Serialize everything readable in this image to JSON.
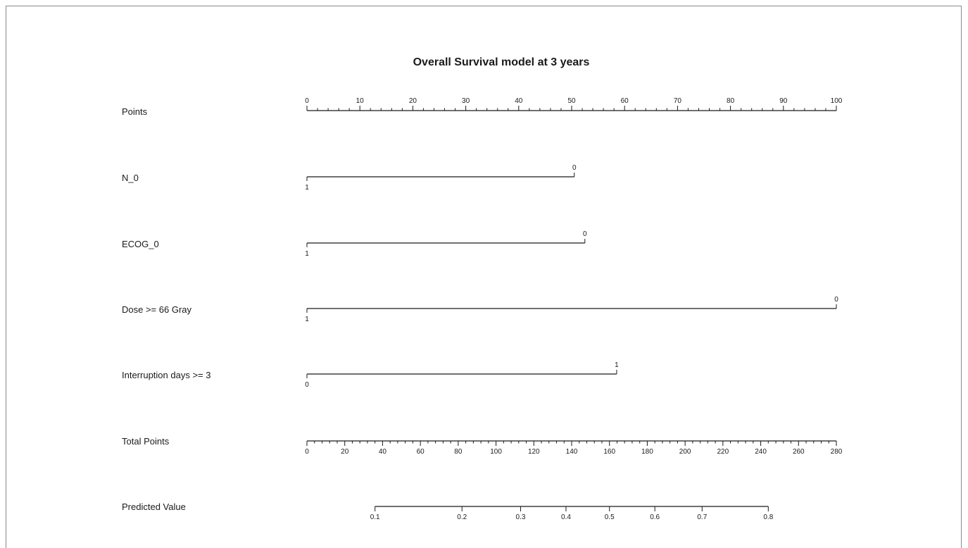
{
  "chart_data": {
    "type": "nomogram",
    "title": "Overall Survival model at 3 years",
    "points_axis": {
      "label": "Points",
      "range": [
        0,
        100
      ],
      "major_ticks": [
        0,
        10,
        20,
        30,
        40,
        50,
        60,
        70,
        80,
        90,
        100
      ],
      "minor_step": 2
    },
    "variables": [
      {
        "name": "N_0",
        "levels": [
          {
            "label": "1",
            "points": 0
          },
          {
            "label": "0",
            "points": 50.5
          }
        ]
      },
      {
        "name": "ECOG_0",
        "levels": [
          {
            "label": "1",
            "points": 0
          },
          {
            "label": "0",
            "points": 52.5
          }
        ]
      },
      {
        "name": "Dose >= 66 Gray",
        "levels": [
          {
            "label": "1",
            "points": 0
          },
          {
            "label": "0",
            "points": 100
          }
        ]
      },
      {
        "name": "Interruption days >= 3",
        "levels": [
          {
            "label": "0",
            "points": 0
          },
          {
            "label": "1",
            "points": 58.5
          }
        ]
      }
    ],
    "total_points_axis": {
      "label": "Total Points",
      "range": [
        0,
        280
      ],
      "major_ticks": [
        0,
        20,
        40,
        60,
        80,
        100,
        120,
        140,
        160,
        180,
        200,
        220,
        240,
        260,
        280
      ],
      "minor_step": 4
    },
    "predicted_axis": {
      "label": "Predicted Value",
      "start_total_points": 36,
      "end_total_points": 244,
      "ticks": [
        {
          "value": "0.1",
          "total_points": 36
        },
        {
          "value": "0.2",
          "total_points": 82
        },
        {
          "value": "0.3",
          "total_points": 113
        },
        {
          "value": "0.4",
          "total_points": 137
        },
        {
          "value": "0.5",
          "total_points": 160
        },
        {
          "value": "0.6",
          "total_points": 184
        },
        {
          "value": "0.7",
          "total_points": 209
        },
        {
          "value": "0.8",
          "total_points": 244
        }
      ]
    }
  }
}
